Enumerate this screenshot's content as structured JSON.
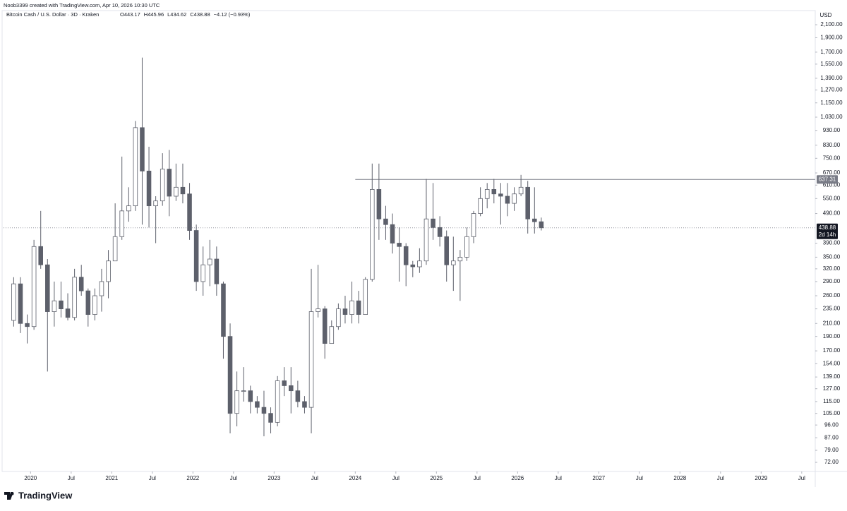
{
  "header": {
    "credit": "Noob3399 created with TradingView.com, Apr 10, 2026 10:30 UTC",
    "symbol": "Bitcoin Cash / U.S. Dollar · 3D · Kraken",
    "ohlc": [
      "O443.17",
      "H445.96",
      "L434.62",
      "C438.88",
      "−4.12 (−0.93%)"
    ],
    "logo": "TradingView"
  },
  "chart_data": {
    "type": "candlestick",
    "currency": "USD",
    "log_scale": true,
    "grid": false,
    "up_color": "#ffffff",
    "down_color": "#5d606b",
    "wick_color": "#5d606b",
    "xlim": [
      "2019-09",
      "2029-09"
    ],
    "xticks": [
      {
        "value": "2020-01",
        "label": "2020"
      },
      {
        "value": "2020-07",
        "label": "Jul"
      },
      {
        "value": "2021-01",
        "label": "2021"
      },
      {
        "value": "2021-07",
        "label": "Jul"
      },
      {
        "value": "2022-01",
        "label": "2022"
      },
      {
        "value": "2022-07",
        "label": "Jul"
      },
      {
        "value": "2023-01",
        "label": "2023"
      },
      {
        "value": "2023-07",
        "label": "Jul"
      },
      {
        "value": "2024-01",
        "label": "2024"
      },
      {
        "value": "2024-07",
        "label": "Jul"
      },
      {
        "value": "2025-01",
        "label": "2025"
      },
      {
        "value": "2025-07",
        "label": "Jul"
      },
      {
        "value": "2026-01",
        "label": "2026"
      },
      {
        "value": "2026-07",
        "label": "Jul"
      },
      {
        "value": "2027-01",
        "label": "2027"
      },
      {
        "value": "2027-07",
        "label": "Jul"
      },
      {
        "value": "2028-01",
        "label": "2028"
      },
      {
        "value": "2028-07",
        "label": "Jul"
      },
      {
        "value": "2029-01",
        "label": "2029"
      },
      {
        "value": "2029-07",
        "label": "Jul"
      }
    ],
    "ylim": [
      67.1,
      2304
    ],
    "yticks": [
      {
        "value": 2100,
        "label": "2,100.00"
      },
      {
        "value": 1900,
        "label": "1,900.00"
      },
      {
        "value": 1700,
        "label": "1,700.00"
      },
      {
        "value": 1550,
        "label": "1,550.00"
      },
      {
        "value": 1390,
        "label": "1,390.00"
      },
      {
        "value": 1270,
        "label": "1,270.00"
      },
      {
        "value": 1150,
        "label": "1,150.00"
      },
      {
        "value": 1030,
        "label": "1,030.00"
      },
      {
        "value": 930,
        "label": "930.00"
      },
      {
        "value": 830,
        "label": "830.00"
      },
      {
        "value": 750,
        "label": "750.00"
      },
      {
        "value": 670,
        "label": "670.00"
      },
      {
        "value": 610,
        "label": "610.00"
      },
      {
        "value": 550,
        "label": "550.00"
      },
      {
        "value": 490,
        "label": "490.00"
      },
      {
        "value": 390,
        "label": "390.00"
      },
      {
        "value": 350,
        "label": "350.00"
      },
      {
        "value": 320,
        "label": "320.00"
      },
      {
        "value": 290,
        "label": "290.00"
      },
      {
        "value": 260,
        "label": "260.00"
      },
      {
        "value": 235,
        "label": "235.00"
      },
      {
        "value": 210,
        "label": "210.00"
      },
      {
        "value": 190,
        "label": "190.00"
      },
      {
        "value": 170,
        "label": "170.00"
      },
      {
        "value": 154,
        "label": "154.00"
      },
      {
        "value": 139,
        "label": "139.00"
      },
      {
        "value": 127,
        "label": "127.00"
      },
      {
        "value": 115,
        "label": "115.00"
      },
      {
        "value": 105,
        "label": "105.00"
      },
      {
        "value": 96,
        "label": "96.00"
      },
      {
        "value": 87,
        "label": "87.00"
      },
      {
        "value": 79,
        "label": "79.00"
      },
      {
        "value": 72,
        "label": "72.00"
      }
    ],
    "level_line": {
      "value": 637.31,
      "start": "2024-01"
    },
    "last_price": {
      "value": 438.88,
      "countdown": "2d 14h"
    },
    "x": [
      "2019-10",
      "2019-11",
      "2019-12",
      "2020-01",
      "2020-02",
      "2020-03",
      "2020-04",
      "2020-05",
      "2020-06",
      "2020-07",
      "2020-08",
      "2020-09",
      "2020-10",
      "2020-11",
      "2020-12",
      "2021-01",
      "2021-02",
      "2021-03",
      "2021-04",
      "2021-05",
      "2021-06",
      "2021-07",
      "2021-08",
      "2021-09",
      "2021-10",
      "2021-11",
      "2021-12",
      "2022-01",
      "2022-02",
      "2022-03",
      "2022-04",
      "2022-05",
      "2022-06",
      "2022-07",
      "2022-08",
      "2022-09",
      "2022-10",
      "2022-11",
      "2022-12",
      "2023-01",
      "2023-02",
      "2023-03",
      "2023-04",
      "2023-05",
      "2023-06",
      "2023-07",
      "2023-08",
      "2023-09",
      "2023-10",
      "2023-11",
      "2023-12",
      "2024-01",
      "2024-02",
      "2024-03",
      "2024-04",
      "2024-05",
      "2024-06",
      "2024-07",
      "2024-08",
      "2024-09",
      "2024-10",
      "2024-11",
      "2024-12",
      "2025-01",
      "2025-02",
      "2025-03",
      "2025-04",
      "2025-05",
      "2025-06",
      "2025-07",
      "2025-08",
      "2025-09",
      "2025-10",
      "2025-11",
      "2025-12",
      "2026-01",
      "2026-02",
      "2026-03",
      "2026-04"
    ],
    "open": [
      215,
      285,
      210,
      205,
      380,
      330,
      230,
      250,
      235,
      220,
      300,
      270,
      225,
      260,
      290,
      340,
      410,
      500,
      520,
      950,
      680,
      520,
      540,
      690,
      560,
      600,
      570,
      430,
      290,
      330,
      345,
      285,
      190,
      105,
      125,
      125,
      115,
      110,
      105,
      98,
      135,
      130,
      125,
      115,
      110,
      230,
      235,
      180,
      205,
      235,
      225,
      250,
      225,
      295,
      590,
      470,
      450,
      390,
      380,
      330,
      325,
      340,
      470,
      440,
      410,
      330,
      340,
      350,
      410,
      490,
      550,
      590,
      570,
      560,
      530,
      570,
      600,
      470,
      460
    ],
    "high": [
      300,
      300,
      225,
      400,
      500,
      345,
      290,
      290,
      265,
      320,
      330,
      275,
      275,
      320,
      370,
      530,
      760,
      600,
      1000,
      1630,
      820,
      560,
      780,
      800,
      720,
      720,
      620,
      450,
      380,
      400,
      380,
      290,
      210,
      145,
      150,
      130,
      120,
      125,
      110,
      140,
      150,
      150,
      135,
      120,
      320,
      330,
      240,
      215,
      245,
      260,
      290,
      270,
      300,
      720,
      720,
      520,
      490,
      440,
      390,
      340,
      375,
      640,
      620,
      480,
      430,
      410,
      370,
      440,
      500,
      600,
      620,
      640,
      620,
      620,
      600,
      660,
      630,
      600,
      475
    ],
    "low": [
      205,
      195,
      180,
      200,
      320,
      145,
      205,
      220,
      215,
      215,
      260,
      205,
      215,
      230,
      255,
      340,
      400,
      460,
      500,
      450,
      440,
      390,
      520,
      480,
      540,
      530,
      400,
      270,
      260,
      280,
      260,
      160,
      90,
      95,
      115,
      105,
      105,
      88,
      90,
      95,
      120,
      105,
      110,
      105,
      90,
      220,
      160,
      180,
      200,
      210,
      210,
      210,
      225,
      290,
      400,
      400,
      360,
      290,
      280,
      300,
      310,
      330,
      400,
      380,
      290,
      270,
      250,
      340,
      390,
      480,
      510,
      530,
      450,
      480,
      500,
      560,
      420,
      420,
      430
    ],
    "close": [
      285,
      210,
      205,
      380,
      330,
      230,
      250,
      235,
      220,
      300,
      270,
      225,
      260,
      290,
      340,
      410,
      500,
      520,
      950,
      680,
      520,
      540,
      690,
      560,
      600,
      570,
      430,
      290,
      330,
      345,
      285,
      190,
      105,
      125,
      125,
      115,
      110,
      105,
      98,
      135,
      130,
      125,
      115,
      110,
      230,
      235,
      180,
      205,
      235,
      225,
      250,
      225,
      295,
      590,
      470,
      450,
      390,
      380,
      330,
      325,
      340,
      470,
      440,
      410,
      330,
      340,
      350,
      410,
      490,
      550,
      590,
      570,
      560,
      530,
      570,
      600,
      470,
      460,
      438.88
    ]
  }
}
